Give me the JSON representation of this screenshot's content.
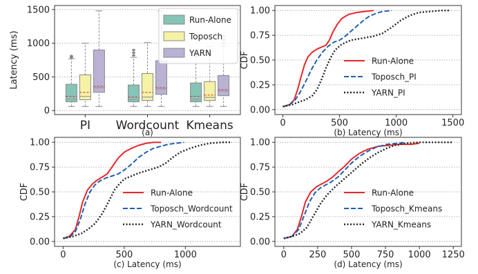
{
  "chart_data": [
    {
      "id": "a",
      "type": "box",
      "caption": "(a)",
      "xlabel": "",
      "ylabel": "Latency (ms)",
      "ylim": [
        -60,
        1560
      ],
      "yticks": [
        0,
        500,
        1000,
        1500
      ],
      "grid": "y-dotted",
      "legend_position": "top-right",
      "categories": [
        "PI",
        "Wordcount",
        "Kmeans"
      ],
      "series": [
        {
          "name": "Run-Alone",
          "color": "#86c4b8",
          "boxes": [
            {
              "whisker_low": 60,
              "q1": 130,
              "median": 170,
              "mean": 210,
              "q3": 390,
              "whisker_high": 770,
              "outliers": [
                790,
                800,
                810
              ]
            },
            {
              "whisker_low": 60,
              "q1": 130,
              "median": 165,
              "mean": 200,
              "q3": 380,
              "whisker_high": 790,
              "outliers": [
                820,
                860,
                900
              ]
            },
            {
              "whisker_low": 60,
              "q1": 130,
              "median": 165,
              "mean": 210,
              "q3": 410,
              "whisker_high": 800,
              "outliers": [
                830,
                860
              ]
            }
          ]
        },
        {
          "name": "Toposch",
          "color": "#f5f2a6",
          "boxes": [
            {
              "whisker_low": 60,
              "q1": 160,
              "median": 210,
              "mean": 270,
              "q3": 530,
              "whisker_high": 1000,
              "outliers": []
            },
            {
              "whisker_low": 60,
              "q1": 150,
              "median": 200,
              "mean": 270,
              "q3": 550,
              "whisker_high": 1010,
              "outliers": []
            },
            {
              "whisker_low": 60,
              "q1": 150,
              "median": 195,
              "mean": 230,
              "q3": 430,
              "whisker_high": 950,
              "outliers": []
            }
          ]
        },
        {
          "name": "YARN",
          "color": "#b9b2d5",
          "boxes": [
            {
              "whisker_low": 60,
              "q1": 270,
              "median": 340,
              "mean": 360,
              "q3": 900,
              "whisker_high": 1480,
              "outliers": []
            },
            {
              "whisker_low": 60,
              "q1": 240,
              "median": 320,
              "mean": 340,
              "q3": 740,
              "whisker_high": 1480,
              "outliers": []
            },
            {
              "whisker_low": 60,
              "q1": 220,
              "median": 290,
              "mean": 310,
              "q3": 520,
              "whisker_high": 960,
              "outliers": [
                1000,
                1050,
                1100
              ]
            }
          ]
        }
      ]
    },
    {
      "id": "b",
      "type": "line",
      "xlabel": "(b) Latency (ms)",
      "ylabel": "CDF",
      "xlim": [
        -70,
        1575
      ],
      "ylim": [
        -0.05,
        1.05
      ],
      "xticks": [
        0,
        500,
        1000,
        1500
      ],
      "yticks": [
        0.0,
        0.25,
        0.5,
        0.75,
        1.0
      ],
      "grid": "y-dotted",
      "legend_position": "bottom-right",
      "series": [
        {
          "name": "Run-Alone",
          "color": "#e8262a",
          "dash": "solid",
          "x": [
            0,
            60,
            100,
            130,
            160,
            190,
            220,
            260,
            300,
            340,
            380,
            410,
            440,
            480,
            520,
            580,
            650,
            720,
            800
          ],
          "y": [
            0.03,
            0.05,
            0.1,
            0.2,
            0.33,
            0.45,
            0.53,
            0.58,
            0.61,
            0.63,
            0.65,
            0.7,
            0.78,
            0.86,
            0.92,
            0.96,
            0.98,
            0.99,
            1.0
          ]
        },
        {
          "name": "Toposch_PI",
          "color": "#1f5fae",
          "dash": "dashed",
          "x": [
            0,
            60,
            110,
            150,
            200,
            250,
            300,
            350,
            400,
            450,
            500,
            550,
            600,
            650,
            700,
            760,
            820,
            880,
            960
          ],
          "y": [
            0.03,
            0.05,
            0.1,
            0.17,
            0.28,
            0.4,
            0.5,
            0.58,
            0.64,
            0.68,
            0.7,
            0.74,
            0.79,
            0.84,
            0.89,
            0.94,
            0.97,
            0.99,
            1.0
          ]
        },
        {
          "name": "YARN_PI",
          "color": "#222222",
          "dash": "dotted",
          "x": [
            0,
            80,
            150,
            200,
            260,
            300,
            340,
            380,
            420,
            460,
            520,
            600,
            700,
            800,
            880,
            960,
            1040,
            1120,
            1200,
            1300,
            1400,
            1480
          ],
          "y": [
            0.03,
            0.05,
            0.08,
            0.1,
            0.14,
            0.2,
            0.3,
            0.42,
            0.52,
            0.6,
            0.66,
            0.7,
            0.72,
            0.74,
            0.77,
            0.83,
            0.9,
            0.95,
            0.98,
            0.99,
            1.0,
            1.0
          ]
        }
      ]
    },
    {
      "id": "c",
      "type": "line",
      "xlabel": "(c) Latency (ms)",
      "ylabel": "CDF",
      "xlim": [
        -70,
        1450
      ],
      "ylim": [
        -0.05,
        1.05
      ],
      "xticks": [
        0,
        500,
        1000
      ],
      "yticks": [
        0.0,
        0.25,
        0.5,
        0.75,
        1.0
      ],
      "grid": "y-dotted",
      "legend_position": "bottom-right",
      "series": [
        {
          "name": "Run-Alone",
          "color": "#e8262a",
          "dash": "solid",
          "x": [
            0,
            50,
            100,
            130,
            160,
            200,
            240,
            280,
            320,
            360,
            400,
            450,
            500,
            560,
            620,
            680,
            740,
            800
          ],
          "y": [
            0.03,
            0.05,
            0.12,
            0.25,
            0.4,
            0.52,
            0.58,
            0.62,
            0.65,
            0.68,
            0.75,
            0.84,
            0.9,
            0.94,
            0.97,
            0.99,
            1.0,
            1.0
          ]
        },
        {
          "name": "Toposch_Wordcount",
          "color": "#1f5fae",
          "dash": "dashed",
          "x": [
            0,
            60,
            100,
            140,
            180,
            220,
            260,
            300,
            350,
            400,
            450,
            500,
            560,
            620,
            680,
            740,
            800,
            860,
            920,
            990
          ],
          "y": [
            0.03,
            0.05,
            0.1,
            0.22,
            0.38,
            0.5,
            0.57,
            0.61,
            0.64,
            0.66,
            0.68,
            0.72,
            0.78,
            0.85,
            0.9,
            0.94,
            0.96,
            0.98,
            0.99,
            1.0
          ]
        },
        {
          "name": "YARN_Wordcount",
          "color": "#222222",
          "dash": "dotted",
          "x": [
            0,
            80,
            150,
            200,
            260,
            320,
            380,
            420,
            460,
            500,
            560,
            620,
            700,
            780,
            840,
            900,
            960,
            1040,
            1120,
            1200,
            1300,
            1380
          ],
          "y": [
            0.03,
            0.05,
            0.08,
            0.12,
            0.18,
            0.28,
            0.42,
            0.52,
            0.58,
            0.63,
            0.66,
            0.69,
            0.72,
            0.75,
            0.79,
            0.85,
            0.9,
            0.94,
            0.97,
            0.99,
            1.0,
            1.0
          ]
        }
      ]
    },
    {
      "id": "d",
      "type": "line",
      "xlabel": "(d) Latency (ms)",
      "ylabel": "CDF",
      "xlim": [
        -65,
        1310
      ],
      "ylim": [
        -0.05,
        1.05
      ],
      "xticks": [
        0,
        250,
        500,
        750,
        1000,
        1250
      ],
      "yticks": [
        0.0,
        0.25,
        0.5,
        0.75,
        1.0
      ],
      "grid": "y-dotted",
      "legend_position": "bottom-right",
      "series": [
        {
          "name": "Run-Alone",
          "color": "#e8262a",
          "dash": "solid",
          "x": [
            0,
            60,
            100,
            130,
            160,
            200,
            240,
            280,
            320,
            360,
            400,
            450,
            500,
            560,
            620,
            700,
            780,
            860,
            940,
            1000
          ],
          "y": [
            0.03,
            0.05,
            0.12,
            0.25,
            0.4,
            0.5,
            0.55,
            0.58,
            0.61,
            0.65,
            0.7,
            0.76,
            0.83,
            0.89,
            0.93,
            0.96,
            0.97,
            0.98,
            0.98,
            0.99
          ]
        },
        {
          "name": "Toposch_Kmeans",
          "color": "#1f5fae",
          "dash": "dashed",
          "x": [
            0,
            60,
            110,
            150,
            190,
            230,
            270,
            310,
            350,
            400,
            450,
            500,
            560,
            620,
            680,
            760,
            840,
            900
          ],
          "y": [
            0.03,
            0.05,
            0.12,
            0.26,
            0.4,
            0.49,
            0.54,
            0.57,
            0.6,
            0.65,
            0.72,
            0.79,
            0.86,
            0.91,
            0.95,
            0.98,
            0.99,
            1.0
          ]
        },
        {
          "name": "YARN_Kmeans",
          "color": "#222222",
          "dash": "dotted",
          "x": [
            0,
            60,
            120,
            170,
            220,
            270,
            320,
            370,
            420,
            470,
            520,
            580,
            640,
            700,
            760,
            820,
            900,
            1000,
            1100,
            1250
          ],
          "y": [
            0.03,
            0.05,
            0.08,
            0.14,
            0.26,
            0.38,
            0.47,
            0.54,
            0.6,
            0.66,
            0.72,
            0.79,
            0.85,
            0.9,
            0.94,
            0.97,
            0.99,
            1.0,
            1.0,
            1.0
          ]
        }
      ]
    }
  ]
}
